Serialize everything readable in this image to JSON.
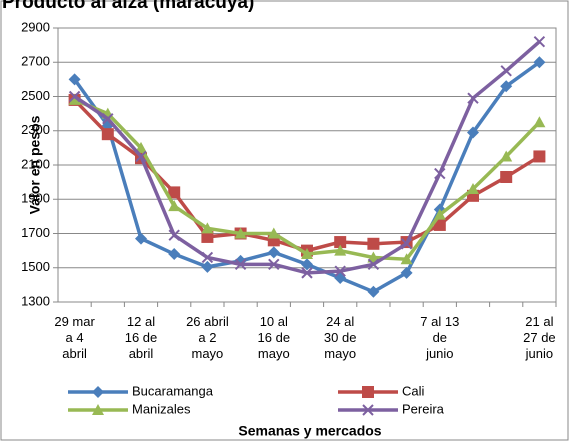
{
  "chart_data": {
    "type": "line",
    "title": "Producto al alza (maracuyá)",
    "x_label": "Semanas y mercados",
    "y_label": "Valor en pesos",
    "categories": [
      "29 mar\na 4\nabril",
      null,
      "12 al\n16 de\nabril",
      null,
      "26 abril\na 2\nmayo",
      null,
      "10 al\n16 de\nmayo",
      null,
      "24 al\n30 de\nmayo",
      null,
      null,
      "7 al 13\nde\njunio",
      null,
      null,
      "21 al\n27 de\njunio"
    ],
    "ylim": [
      1300,
      2900
    ],
    "yticks": [
      1300,
      1500,
      1700,
      1900,
      2100,
      2300,
      2500,
      2700,
      2900
    ],
    "grid": true,
    "legend": "bottom",
    "series": [
      {
        "name": "Bucaramanga",
        "color": "#4a7ebb",
        "marker": "diamond",
        "values": [
          2600,
          2330,
          1670,
          1580,
          1505,
          1540,
          1590,
          1520,
          1440,
          1360,
          1470,
          1840,
          2290,
          2560,
          2700
        ]
      },
      {
        "name": "Cali",
        "color": "#be4b48",
        "marker": "square",
        "values": [
          2480,
          2280,
          2140,
          1940,
          1680,
          1700,
          1660,
          1600,
          1650,
          1640,
          1650,
          1750,
          1920,
          2030,
          2150
        ]
      },
      {
        "name": "Manizales",
        "color": "#98b954",
        "marker": "triangle",
        "values": [
          2480,
          2400,
          2200,
          1860,
          1730,
          1700,
          1700,
          1580,
          1600,
          1560,
          1550,
          1810,
          1960,
          2150,
          2350
        ]
      },
      {
        "name": "Pereira",
        "color": "#7d60a0",
        "marker": "x",
        "values": [
          2500,
          2370,
          2150,
          1690,
          1560,
          1520,
          1520,
          1470,
          1480,
          1520,
          1640,
          2050,
          2490,
          2650,
          2820
        ]
      }
    ]
  }
}
